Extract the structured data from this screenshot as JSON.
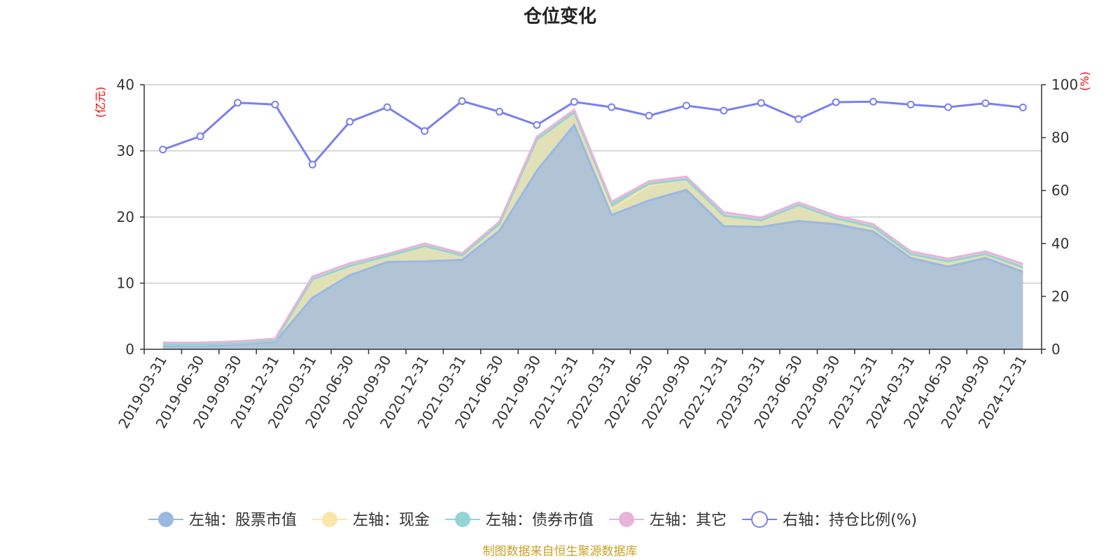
{
  "chart_data": {
    "type": "area",
    "title": "仓位变化",
    "left_axis_unit": "(亿元)",
    "right_axis_unit": "(%)",
    "ylim_left": [
      0,
      40
    ],
    "yticks_left": [
      0,
      10,
      20,
      30,
      40
    ],
    "ylim_right": [
      0,
      100
    ],
    "yticks_right": [
      0,
      20,
      40,
      60,
      80,
      100
    ],
    "stacked": true,
    "grid": true,
    "legend_position": "bottom",
    "categories": [
      "2019-03-31",
      "2019-06-30",
      "2019-09-30",
      "2019-12-31",
      "2020-03-31",
      "2020-06-30",
      "2020-09-30",
      "2020-12-31",
      "2021-03-31",
      "2021-06-30",
      "2021-09-30",
      "2021-12-31",
      "2022-03-31",
      "2022-06-30",
      "2022-09-30",
      "2022-12-31",
      "2023-03-31",
      "2023-06-30",
      "2023-09-30",
      "2023-12-31",
      "2024-03-31",
      "2024-06-30",
      "2024-09-30",
      "2024-12-31"
    ],
    "series": [
      {
        "name": "左轴：股票市值",
        "axis": "left",
        "color": "#9bb8e3",
        "values": [
          0.5,
          0.5,
          0.7,
          1.1,
          7.8,
          11.2,
          13.2,
          13.3,
          13.5,
          17.9,
          27.0,
          33.9,
          20.3,
          22.5,
          24.1,
          18.6,
          18.5,
          19.4,
          18.9,
          17.8,
          13.8,
          12.5,
          13.8,
          11.7
        ]
      },
      {
        "name": "左轴：现金",
        "axis": "left",
        "color": "#f8e7a8",
        "values": [
          0.2,
          0.2,
          0.2,
          0.2,
          2.8,
          1.4,
          0.9,
          2.3,
          0.7,
          0.8,
          4.7,
          1.9,
          0.9,
          2.3,
          1.6,
          1.6,
          1.0,
          2.4,
          0.9,
          0.7,
          0.6,
          0.8,
          0.6,
          0.7
        ]
      },
      {
        "name": "左轴：债券市值",
        "axis": "left",
        "color": "#93d4d4",
        "values": [
          0.0,
          0.0,
          0.0,
          0.0,
          0.0,
          0.0,
          0.0,
          0.0,
          0.0,
          0.2,
          0.0,
          0.0,
          0.7,
          0.2,
          0.0,
          0.0,
          0.0,
          0.0,
          0.0,
          0.0,
          0.0,
          0.0,
          0.0,
          0.0
        ]
      },
      {
        "name": "左轴：其它",
        "axis": "left",
        "color": "#e8b4d8",
        "values": [
          0.3,
          0.3,
          0.3,
          0.3,
          0.4,
          0.4,
          0.3,
          0.4,
          0.3,
          0.4,
          0.4,
          0.4,
          0.4,
          0.4,
          0.4,
          0.5,
          0.4,
          0.4,
          0.4,
          0.4,
          0.4,
          0.4,
          0.4,
          0.5
        ]
      },
      {
        "name": "右轴：持仓比例(%)",
        "axis": "right",
        "color": "#7b7ff0",
        "values": [
          75.5,
          80.5,
          93.2,
          92.5,
          69.8,
          86.0,
          91.5,
          82.5,
          93.8,
          89.8,
          84.8,
          93.5,
          91.5,
          88.3,
          92.1,
          90.2,
          93.1,
          87.0,
          93.4,
          93.6,
          92.5,
          91.5,
          93.0,
          91.4
        ]
      }
    ],
    "source": "制图数据来自恒生聚源数据库"
  }
}
